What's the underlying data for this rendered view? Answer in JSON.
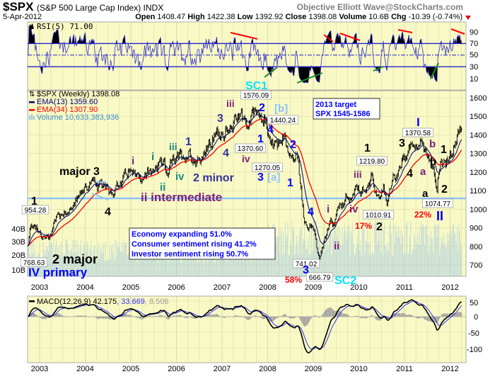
{
  "header": {
    "symbol": "$SPX",
    "name": "(S&P 500 Large Cap Index) INDX",
    "credit": "Objective Elliott Wave@StockCharts.com",
    "date": "5-Apr-2012",
    "open_label": "Open",
    "open": "1408.47",
    "high_label": "High",
    "high": "1422.38",
    "low_label": "Low",
    "low": "1392.92",
    "close_label": "Close",
    "close": "1398.08",
    "volume_label": "Volume",
    "volume": "10.6B",
    "chg_label": "Chg",
    "chg": "-10.39 (-0.74%)",
    "chg_direction_icon": "triangle-down-icon"
  },
  "colors": {
    "panel_bg": "#f9f9c6",
    "grid": "#dcdcaa",
    "price": "#000000",
    "ema13": "#000080",
    "ema34": "#ff0000",
    "volume": "#9cc6e6",
    "rsi": "#3333cc",
    "macd": "#000000",
    "signal": "#3333ff",
    "hist": "#999999",
    "black": "#000000",
    "purple": "#7a1f7a",
    "teal": "#1a8a7a",
    "navy": "#333399",
    "blue": "#0000ff",
    "lightblue": "#8ec3f5",
    "cyan": "#00e5ff",
    "red": "#ff0000"
  },
  "rsi_panel": {
    "legend": "RSI(5) 71.00",
    "ticks": [
      "90",
      "70",
      "50",
      "30",
      "10"
    ]
  },
  "price_panel": {
    "legend_title": "$SPX (Weekly) 1398.08",
    "legend_ema13": "EMA(13) 1359.60",
    "legend_ema34": "EMA(34) 1307.90",
    "legend_volume": "Volume 10,633,383,936",
    "price_ticks": [
      "1600",
      "1500",
      "1400",
      "1300",
      "1200",
      "1100",
      "1000",
      "900",
      "800",
      "700"
    ],
    "volume_ticks": [
      "40B",
      "30B",
      "20B",
      "10B"
    ],
    "info_box": [
      "Economy expanding 51.0%",
      "Consumer sentiment rising 41.2%",
      "Investor sentiment rising 50.7%"
    ],
    "target_box": [
      "2013 target",
      "SPX 1545-1586"
    ],
    "price_tags": [
      "954.28",
      "768.63",
      "1576.09",
      "1440.24",
      "1370.60",
      "1270.05",
      "1219.80",
      "1010.91",
      "741.02",
      "666.79",
      "1370.58",
      "1074.77"
    ],
    "annotations": [
      {
        "text": "1",
        "color": "black"
      },
      {
        "text": "major 3",
        "color": "black"
      },
      {
        "text": "4",
        "color": "black"
      },
      {
        "text": "2 major",
        "color": "black"
      },
      {
        "text": "IV primary",
        "color": "blue"
      },
      {
        "text": "i",
        "color": "purple"
      },
      {
        "text": "i",
        "color": "teal"
      },
      {
        "text": "iii",
        "color": "teal"
      },
      {
        "text": "1",
        "color": "navy"
      },
      {
        "text": "iv",
        "color": "teal"
      },
      {
        "text": "ii",
        "color": "teal"
      },
      {
        "text": "2 minor",
        "color": "navy"
      },
      {
        "text": "ii intermediate",
        "color": "purple"
      },
      {
        "text": "3",
        "color": "navy"
      },
      {
        "text": "4",
        "color": "navy"
      },
      {
        "text": "iii",
        "color": "purple"
      },
      {
        "text": "iv",
        "color": "purple"
      },
      {
        "text": "SC1",
        "color": "cyan"
      },
      {
        "text": "2",
        "color": "blue"
      },
      {
        "text": "[b]",
        "color": "lightblue"
      },
      {
        "text": "4",
        "color": "blue"
      },
      {
        "text": "1",
        "color": "blue"
      },
      {
        "text": "2",
        "color": "blue"
      },
      {
        "text": "3",
        "color": "blue"
      },
      {
        "text": "[a]",
        "color": "lightblue"
      },
      {
        "text": "1",
        "color": "blue"
      },
      {
        "text": "4",
        "color": "blue"
      },
      {
        "text": "i",
        "color": "purple"
      },
      {
        "text": "iii",
        "color": "purple"
      },
      {
        "text": "1",
        "color": "black"
      },
      {
        "text": "iv",
        "color": "purple"
      },
      {
        "text": "17%",
        "color": "red"
      },
      {
        "text": "2",
        "color": "black"
      },
      {
        "text": "ii",
        "color": "purple"
      },
      {
        "text": "3",
        "color": "blue"
      },
      {
        "text": "58%",
        "color": "red"
      },
      {
        "text": "SC2",
        "color": "cyan"
      },
      {
        "text": "I",
        "color": "blue"
      },
      {
        "text": "3",
        "color": "black"
      },
      {
        "text": "b",
        "color": "purple"
      },
      {
        "text": "1",
        "color": "black"
      },
      {
        "text": "b",
        "color": "black"
      },
      {
        "text": "4",
        "color": "black"
      },
      {
        "text": "a",
        "color": "purple"
      },
      {
        "text": "2",
        "color": "black"
      },
      {
        "text": "a",
        "color": "black"
      },
      {
        "text": "22%",
        "color": "red"
      },
      {
        "text": "II",
        "color": "blue"
      }
    ]
  },
  "macd_panel": {
    "legend_macd": "MACD(12,26,9) 42.175",
    "legend_signal": ", 33.669",
    "legend_hist": ", 8.506",
    "ticks": [
      "50",
      "0",
      "-50",
      "-100"
    ]
  },
  "x_axis": {
    "years": [
      "2003",
      "2004",
      "2005",
      "2006",
      "2007",
      "2008",
      "2009",
      "2010",
      "2011",
      "2012"
    ]
  },
  "chart_data": {
    "type": "line",
    "title": "$SPX (S&P 500 Large Cap Index) INDX",
    "frequency": "weekly",
    "x_range": [
      "Oct-2002",
      "Apr-2012"
    ],
    "ylim": [
      650,
      1650
    ],
    "y_scale": "linear",
    "grid": true,
    "horizontal_reference_price": 1060,
    "monthly_close_approx": {
      "start": "2002-10",
      "values": [
        885,
        936,
        880,
        855,
        841,
        848,
        916,
        963,
        974,
        990,
        1008,
        996,
        1050,
        1058,
        1112,
        1131,
        1145,
        1126,
        1107,
        1121,
        1141,
        1101,
        1104,
        1115,
        1130,
        1174,
        1212,
        1181,
        1204,
        1181,
        1157,
        1192,
        1191,
        1234,
        1220,
        1229,
        1207,
        1249,
        1248,
        1280,
        1281,
        1295,
        1311,
        1270,
        1270,
        1277,
        1304,
        1336,
        1378,
        1401,
        1418,
        1438,
        1407,
        1421,
        1482,
        1531,
        1503,
        1455,
        1474,
        1527,
        1549,
        1481,
        1468,
        1379,
        1331,
        1323,
        1386,
        1400,
        1280,
        1267,
        1283,
        1165,
        969,
        896,
        903,
        826,
        735,
        798,
        873,
        919,
        919,
        987,
        1021,
        1057,
        1036,
        1096,
        1115,
        1074,
        1104,
        1169,
        1187,
        1089,
        1031,
        1102,
        1049,
        1141,
        1183,
        1181,
        1258,
        1286,
        1327,
        1326,
        1364,
        1345,
        1321,
        1292,
        1219,
        1131,
        1253,
        1247,
        1258,
        1312,
        1366,
        1408,
        1398
      ]
    },
    "indicators": [
      "EMA(13)",
      "EMA(34)",
      "Volume",
      "RSI(5)",
      "MACD(12,26,9)"
    ],
    "rsi_ylim": [
      0,
      100
    ],
    "macd_ylim": [
      -140,
      60
    ]
  }
}
